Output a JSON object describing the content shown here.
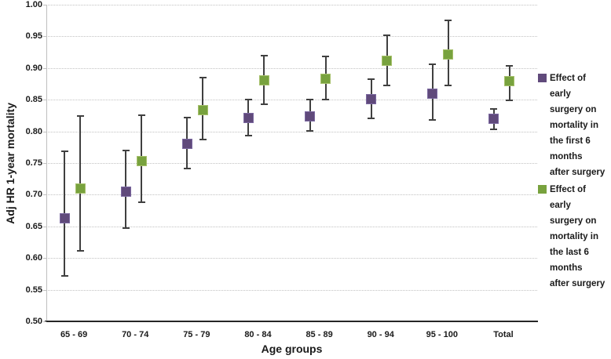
{
  "chart_data": {
    "type": "scatter",
    "xlabel": "Age groups",
    "ylabel": "Adj HR 1-year mortality",
    "ylim": [
      0.5,
      1.0
    ],
    "ytick_step": 0.05,
    "ytick_labels": [
      "1.00",
      "0.95",
      "0.90",
      "0.85",
      "0.80",
      "0.75",
      "0.70",
      "0.65",
      "0.60",
      "0.55",
      "0.50"
    ],
    "grid": true,
    "legend_position": "right",
    "categories": [
      "65 - 69",
      "70 - 74",
      "75 - 79",
      "80 - 84",
      "85 - 89",
      "90 - 94",
      "95 - 100",
      "Total"
    ],
    "series": [
      {
        "name": "Effect of early surgery on mortality in the first 6 months after surgery",
        "legend_lines": [
          "Effect of",
          "early",
          "surgery on",
          "mortality in",
          "the first 6",
          "months",
          "after surgery"
        ],
        "marker_color": "#604a7b",
        "marker_border": "#7b68a0",
        "values": [
          0.663,
          0.705,
          0.78,
          0.821,
          0.824,
          0.851,
          0.86,
          0.82
        ],
        "lower": [
          0.572,
          0.647,
          0.741,
          0.793,
          0.801,
          0.82,
          0.818,
          0.803
        ],
        "upper": [
          0.768,
          0.77,
          0.822,
          0.85,
          0.85,
          0.882,
          0.906,
          0.836
        ]
      },
      {
        "name": "Effect of early surgery on mortality in the last 6 months after surgery",
        "legend_lines": [
          "Effect of",
          "early",
          "surgery on",
          "mortality in",
          "the last 6",
          "months",
          "after surgery"
        ],
        "marker_color": "#78a23e",
        "marker_border": "#a6c06b",
        "values": [
          0.71,
          0.753,
          0.834,
          0.88,
          0.883,
          0.911,
          0.921,
          0.879
        ],
        "lower": [
          0.612,
          0.688,
          0.787,
          0.843,
          0.85,
          0.872,
          0.872,
          0.849
        ],
        "upper": [
          0.824,
          0.826,
          0.885,
          0.919,
          0.918,
          0.952,
          0.975,
          0.904
        ]
      }
    ]
  },
  "style": {
    "error_bar_color": "#404040",
    "gridline_color": "#c2c2c2",
    "x_axis_color": "#262626",
    "y_axis_color": "#bfbfbf",
    "text_color": "#1a1a1a"
  }
}
